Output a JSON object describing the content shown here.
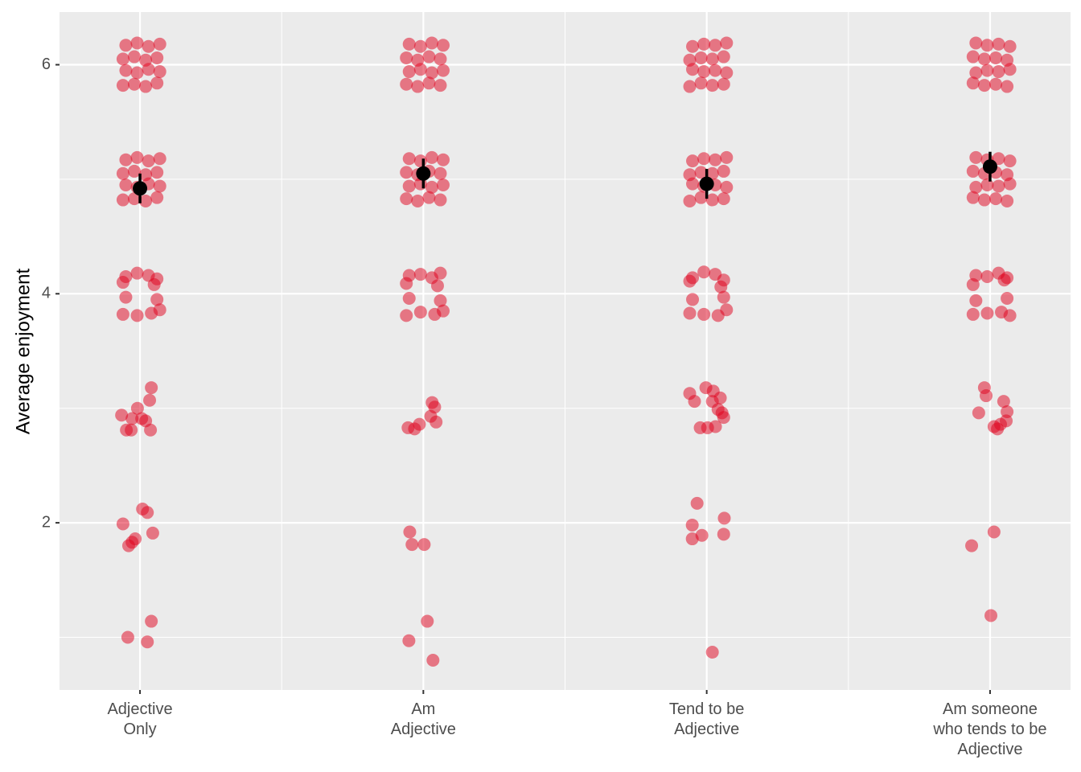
{
  "chart_data": {
    "type": "strip",
    "y_label": "Average enjoyment",
    "categories": [
      "Adjective\nOnly",
      "Am\nAdjective",
      "Tend to be\nAdjective",
      "Am someone\nwho tends to be\nAdjective"
    ],
    "xlim": [
      0.716,
      4.284
    ],
    "ylim": [
      0.54,
      6.46
    ],
    "yticks": [
      2,
      4,
      6
    ],
    "grid": true,
    "point_color": "#e0001b",
    "mean_color": "#000000",
    "points": [
      {
        "x": [
          0.94,
          0.98,
          1.02,
          1.06,
          0.95,
          0.99,
          1.03,
          1.07,
          0.94,
          0.98,
          1.02,
          1.06,
          0.95,
          0.99,
          1.03,
          1.07,
          0.94,
          0.98,
          1.02,
          1.06,
          0.95,
          0.99,
          1.03,
          1.07,
          0.94,
          0.98,
          1.02,
          1.06,
          0.95,
          0.99,
          1.03,
          1.07,
          0.94,
          0.99,
          1.04,
          1.07,
          0.95,
          1.06,
          0.94,
          1.05,
          0.95,
          0.99,
          1.03,
          1.06,
          0.935,
          0.952,
          0.969,
          0.972,
          0.991,
          1.006,
          1.02,
          1.037,
          1.034,
          1.04,
          0.94,
          1.009,
          1.026,
          0.972,
          0.983,
          0.96,
          1.045,
          0.957,
          1.04,
          1.026
        ],
        "y": [
          5.82,
          5.83,
          5.81,
          5.84,
          5.95,
          5.93,
          5.96,
          5.94,
          6.05,
          6.07,
          6.04,
          6.06,
          6.17,
          6.19,
          6.16,
          6.18,
          4.82,
          4.83,
          4.81,
          4.84,
          4.95,
          4.93,
          4.96,
          4.94,
          5.05,
          5.07,
          5.04,
          5.06,
          5.17,
          5.19,
          5.16,
          5.18,
          3.82,
          3.81,
          3.83,
          3.86,
          3.97,
          3.95,
          4.1,
          4.08,
          4.15,
          4.18,
          4.16,
          4.13,
          2.94,
          2.81,
          2.81,
          2.91,
          3.0,
          2.91,
          2.89,
          2.81,
          3.07,
          3.18,
          1.99,
          2.12,
          2.09,
          1.83,
          1.86,
          1.8,
          1.91,
          1.0,
          1.14,
          0.96
        ]
      },
      {
        "x": [
          1.94,
          1.98,
          2.02,
          2.06,
          1.95,
          1.99,
          2.03,
          2.07,
          1.94,
          1.98,
          2.02,
          2.06,
          1.95,
          1.99,
          2.03,
          2.07,
          1.94,
          1.98,
          2.02,
          2.06,
          1.95,
          1.99,
          2.03,
          2.07,
          1.94,
          1.98,
          2.02,
          2.06,
          1.95,
          1.99,
          2.03,
          2.07,
          1.94,
          1.99,
          2.04,
          2.07,
          1.95,
          2.06,
          1.94,
          2.05,
          1.95,
          1.99,
          2.03,
          2.06,
          1.946,
          1.969,
          1.986,
          2.031,
          2.04,
          2.026,
          2.045,
          1.952,
          1.96,
          2.003,
          1.949,
          2.014,
          2.034
        ],
        "y": [
          5.83,
          5.81,
          5.84,
          5.82,
          5.94,
          5.96,
          5.93,
          5.95,
          6.06,
          6.04,
          6.07,
          6.05,
          6.18,
          6.16,
          6.19,
          6.17,
          4.83,
          4.81,
          4.84,
          4.82,
          4.94,
          4.96,
          4.93,
          4.95,
          5.06,
          5.04,
          5.07,
          5.05,
          5.18,
          5.16,
          5.19,
          5.17,
          3.81,
          3.84,
          3.82,
          3.85,
          3.96,
          3.94,
          4.09,
          4.07,
          4.16,
          4.17,
          4.14,
          4.18,
          2.83,
          2.82,
          2.86,
          3.05,
          3.01,
          2.93,
          2.88,
          1.92,
          1.81,
          1.81,
          0.97,
          1.14,
          0.8
        ]
      },
      {
        "x": [
          2.94,
          2.98,
          3.02,
          3.06,
          2.95,
          2.99,
          3.03,
          3.07,
          2.94,
          2.98,
          3.02,
          3.06,
          2.95,
          2.99,
          3.03,
          3.07,
          2.94,
          2.98,
          3.02,
          3.06,
          2.95,
          2.99,
          3.03,
          3.07,
          2.94,
          2.98,
          3.02,
          3.06,
          2.95,
          2.99,
          3.03,
          3.07,
          2.94,
          2.99,
          3.04,
          3.07,
          2.95,
          3.06,
          2.94,
          3.05,
          2.95,
          2.99,
          3.03,
          3.06,
          2.94,
          2.957,
          2.997,
          3.023,
          3.02,
          3.048,
          3.04,
          3.06,
          3.054,
          2.977,
          3.003,
          3.031,
          2.966,
          2.949,
          2.983,
          2.949,
          3.06,
          3.062,
          3.02
        ],
        "y": [
          5.81,
          5.84,
          5.82,
          5.83,
          5.96,
          5.94,
          5.95,
          5.93,
          6.04,
          6.06,
          6.05,
          6.07,
          6.16,
          6.18,
          6.17,
          6.19,
          4.81,
          4.84,
          4.82,
          4.83,
          4.96,
          4.94,
          4.95,
          4.93,
          5.04,
          5.06,
          5.05,
          5.07,
          5.16,
          5.18,
          5.17,
          5.19,
          3.83,
          3.82,
          3.81,
          3.86,
          3.95,
          3.97,
          4.11,
          4.06,
          4.14,
          4.19,
          4.17,
          4.12,
          3.13,
          3.06,
          3.18,
          3.15,
          3.06,
          3.09,
          2.99,
          2.92,
          2.96,
          2.83,
          2.83,
          2.84,
          2.17,
          1.98,
          1.89,
          1.86,
          1.9,
          2.04,
          0.87
        ]
      },
      {
        "x": [
          3.94,
          3.98,
          4.02,
          4.06,
          3.95,
          3.99,
          4.03,
          4.07,
          3.94,
          3.98,
          4.02,
          4.06,
          3.95,
          3.99,
          4.03,
          4.07,
          3.94,
          3.98,
          4.02,
          4.06,
          3.95,
          3.99,
          4.03,
          4.07,
          3.94,
          3.98,
          4.02,
          4.06,
          3.95,
          3.99,
          4.03,
          4.07,
          3.94,
          3.99,
          4.04,
          4.07,
          3.95,
          4.06,
          3.94,
          4.05,
          3.95,
          3.99,
          4.03,
          4.06,
          3.98,
          3.986,
          3.96,
          4.048,
          4.06,
          4.057,
          4.014,
          4.026,
          4.037,
          3.935,
          4.014,
          4.003
        ],
        "y": [
          5.84,
          5.82,
          5.83,
          5.81,
          5.93,
          5.95,
          5.94,
          5.96,
          6.07,
          6.05,
          6.06,
          6.04,
          6.19,
          6.17,
          6.18,
          6.16,
          4.84,
          4.82,
          4.83,
          4.81,
          4.93,
          4.95,
          4.94,
          4.96,
          5.07,
          5.05,
          5.06,
          5.04,
          5.19,
          5.17,
          5.18,
          5.16,
          3.82,
          3.83,
          3.84,
          3.81,
          3.94,
          3.96,
          4.08,
          4.12,
          4.16,
          4.15,
          4.18,
          4.14,
          3.18,
          3.11,
          2.96,
          3.06,
          2.97,
          2.89,
          2.84,
          2.82,
          2.86,
          1.8,
          1.92,
          1.19
        ]
      }
    ],
    "means": [
      4.92,
      5.05,
      4.96,
      5.11
    ],
    "errors": [
      0.13,
      0.13,
      0.13,
      0.13
    ]
  }
}
